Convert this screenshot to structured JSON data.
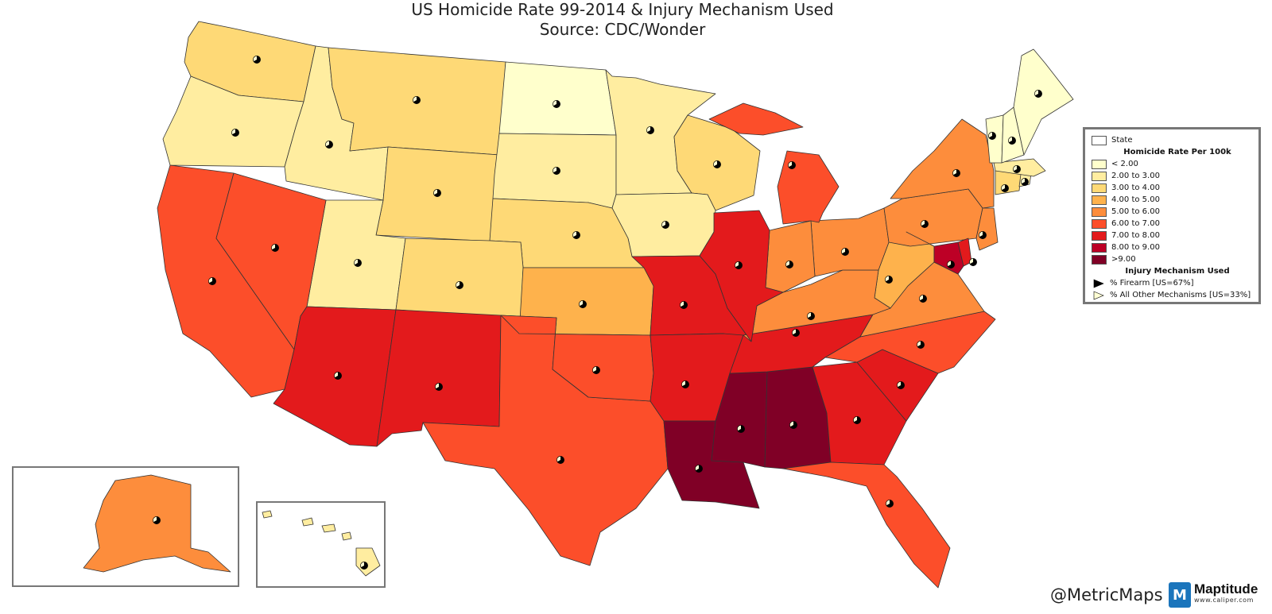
{
  "title_line1": "US Homicide Rate 99-2014 & Injury Mechanism Used",
  "title_line2": "Source:  CDC/Wonder",
  "credit": "@MetricMaps",
  "logo": {
    "brand": "Maptitude",
    "url": "www.caliper.com"
  },
  "legend": {
    "state_label": "State",
    "rate_header": "Homicide Rate Per 100k",
    "classes": [
      {
        "label": "< 2.00",
        "color": "#ffffcc"
      },
      {
        "label": "2.00 to 3.00",
        "color": "#ffeda0"
      },
      {
        "label": "3.00 to 4.00",
        "color": "#fed976"
      },
      {
        "label": "4.00 to 5.00",
        "color": "#feb24c"
      },
      {
        "label": "5.00 to 6.00",
        "color": "#fd8d3c"
      },
      {
        "label": "6.00 to 7.00",
        "color": "#fc4e2a"
      },
      {
        "label": "7.00 to 8.00",
        "color": "#e31a1c"
      },
      {
        "label": "8.00 to 9.00",
        "color": "#bd0026"
      },
      {
        "label": ">9.00",
        "color": "#800026"
      }
    ],
    "mech_header": "Injury Mechanism Used",
    "mech_firearm": "% Firearm [US=67%]",
    "mech_other": "% All Other Mechanisms [US=33%]"
  },
  "map_data": {
    "layers": [
      "State",
      "Homicide Rate Per 100k",
      "Injury Mechanism Used"
    ],
    "us_firearm_pct": 67,
    "us_other_pct": 33,
    "states": [
      {
        "name": "Washington",
        "class": 2
      },
      {
        "name": "Oregon",
        "class": 1
      },
      {
        "name": "Idaho",
        "class": 1
      },
      {
        "name": "Montana",
        "class": 2
      },
      {
        "name": "Wyoming",
        "class": 2
      },
      {
        "name": "North Dakota",
        "class": 0
      },
      {
        "name": "South Dakota",
        "class": 1
      },
      {
        "name": "Minnesota",
        "class": 1
      },
      {
        "name": "Wisconsin",
        "class": 2
      },
      {
        "name": "Iowa",
        "class": 1
      },
      {
        "name": "Nebraska",
        "class": 2
      },
      {
        "name": "Utah",
        "class": 1
      },
      {
        "name": "Colorado",
        "class": 2
      },
      {
        "name": "Kansas",
        "class": 3
      },
      {
        "name": "California",
        "class": 5
      },
      {
        "name": "Nevada",
        "class": 5
      },
      {
        "name": "Arizona",
        "class": 6
      },
      {
        "name": "New Mexico",
        "class": 6
      },
      {
        "name": "Texas",
        "class": 5
      },
      {
        "name": "Oklahoma",
        "class": 5
      },
      {
        "name": "Missouri",
        "class": 6
      },
      {
        "name": "Arkansas",
        "class": 6
      },
      {
        "name": "Louisiana",
        "class": 8
      },
      {
        "name": "Mississippi",
        "class": 8
      },
      {
        "name": "Alabama",
        "class": 8
      },
      {
        "name": "Tennessee",
        "class": 6
      },
      {
        "name": "Georgia",
        "class": 6
      },
      {
        "name": "South Carolina",
        "class": 6
      },
      {
        "name": "Florida",
        "class": 5
      },
      {
        "name": "North Carolina",
        "class": 5
      },
      {
        "name": "Virginia",
        "class": 4
      },
      {
        "name": "West Virginia",
        "class": 3
      },
      {
        "name": "Kentucky",
        "class": 4
      },
      {
        "name": "Ohio",
        "class": 4
      },
      {
        "name": "Indiana",
        "class": 4
      },
      {
        "name": "Illinois",
        "class": 6
      },
      {
        "name": "Michigan",
        "class": 5
      },
      {
        "name": "Pennsylvania",
        "class": 4
      },
      {
        "name": "New York",
        "class": 4
      },
      {
        "name": "Maryland",
        "class": 7
      },
      {
        "name": "Delaware",
        "class": 6
      },
      {
        "name": "New Jersey",
        "class": 4
      },
      {
        "name": "Connecticut",
        "class": 2
      },
      {
        "name": "Rhode Island",
        "class": 1
      },
      {
        "name": "Massachusetts",
        "class": 1
      },
      {
        "name": "Vermont",
        "class": 0
      },
      {
        "name": "New Hampshire",
        "class": 0
      },
      {
        "name": "Maine",
        "class": 0
      },
      {
        "name": "Alaska",
        "class": 4
      },
      {
        "name": "Hawaii",
        "class": 1
      }
    ]
  }
}
